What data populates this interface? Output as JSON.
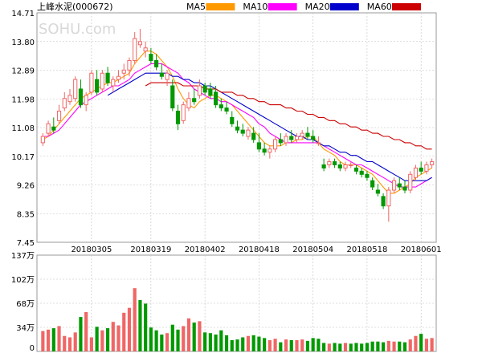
{
  "chart_data": {
    "type": "candlestick",
    "title": "上峰水泥(000672)",
    "price_axis": {
      "ticks": [
        "14.71",
        "13.80",
        "12.89",
        "11.98",
        "11.08",
        "10.17",
        "9.26",
        "8.35",
        "7.45"
      ],
      "ylim": [
        7.45,
        14.71
      ]
    },
    "volume_axis": {
      "ticks": [
        "137万",
        "102万",
        "68万",
        "34万",
        "0"
      ],
      "ylim": [
        0,
        137
      ]
    },
    "date_labels": [
      "20180305",
      "20180319",
      "20180402",
      "20180418",
      "20180504",
      "20180518",
      "20180601"
    ],
    "date_label_index": [
      9,
      20,
      30,
      40,
      50,
      60,
      70
    ],
    "legend": [
      {
        "name": "MA5",
        "color": "#ff9900"
      },
      {
        "name": "MA10",
        "color": "#ff00ff"
      },
      {
        "name": "MA20",
        "color": "#0000cc"
      },
      {
        "name": "MA60",
        "color": "#cc0000"
      }
    ],
    "colors": {
      "up": "#f06666",
      "down": "#009900",
      "grid": "#c0c0c0"
    },
    "watermark": "SOHU.com",
    "candles": [
      [
        10.6,
        10.9,
        10.5,
        10.8
      ],
      [
        10.9,
        11.3,
        10.8,
        11.2
      ],
      [
        11.1,
        11.4,
        10.9,
        11.0
      ],
      [
        11.3,
        11.8,
        11.2,
        11.6
      ],
      [
        11.7,
        12.2,
        11.6,
        12.0
      ],
      [
        11.9,
        12.3,
        11.8,
        12.1
      ],
      [
        12.0,
        12.7,
        11.9,
        12.6
      ],
      [
        12.3,
        12.6,
        11.7,
        11.8
      ],
      [
        11.8,
        12.2,
        11.6,
        12.1
      ],
      [
        12.2,
        12.9,
        12.1,
        12.8
      ],
      [
        12.6,
        12.9,
        12.1,
        12.2
      ],
      [
        12.3,
        12.9,
        12.2,
        12.8
      ],
      [
        12.8,
        13.0,
        12.4,
        12.5
      ],
      [
        12.4,
        12.7,
        12.2,
        12.6
      ],
      [
        12.6,
        12.9,
        12.5,
        12.7
      ],
      [
        12.8,
        13.1,
        12.6,
        12.9
      ],
      [
        12.9,
        13.3,
        12.7,
        13.2
      ],
      [
        13.2,
        14.1,
        13.1,
        13.9
      ],
      [
        13.7,
        14.2,
        13.6,
        13.8
      ],
      [
        13.5,
        13.8,
        13.3,
        13.6
      ],
      [
        13.4,
        13.6,
        13.1,
        13.2
      ],
      [
        13.2,
        13.4,
        12.9,
        13.0
      ],
      [
        12.8,
        13.1,
        12.6,
        12.7
      ],
      [
        12.6,
        12.9,
        12.4,
        12.8
      ],
      [
        12.4,
        12.6,
        11.6,
        11.7
      ],
      [
        11.6,
        11.8,
        11.0,
        11.2
      ],
      [
        11.3,
        11.9,
        11.2,
        11.8
      ],
      [
        11.7,
        12.2,
        11.6,
        12.0
      ],
      [
        12.0,
        12.3,
        11.8,
        11.9
      ],
      [
        12.1,
        12.6,
        12.0,
        12.4
      ],
      [
        12.4,
        12.5,
        12.1,
        12.2
      ],
      [
        12.3,
        12.5,
        12.0,
        12.1
      ],
      [
        12.2,
        12.4,
        11.7,
        11.8
      ],
      [
        11.8,
        12.0,
        11.6,
        11.7
      ],
      [
        11.7,
        11.9,
        11.5,
        11.6
      ],
      [
        11.4,
        11.6,
        11.1,
        11.2
      ],
      [
        11.1,
        11.3,
        10.9,
        11.0
      ],
      [
        11.0,
        11.2,
        10.8,
        10.9
      ],
      [
        10.8,
        11.1,
        10.7,
        11.0
      ],
      [
        10.9,
        11.1,
        10.6,
        10.7
      ],
      [
        10.6,
        10.9,
        10.3,
        10.4
      ],
      [
        10.4,
        10.6,
        10.2,
        10.3
      ],
      [
        10.3,
        10.5,
        10.1,
        10.4
      ],
      [
        10.4,
        10.8,
        10.3,
        10.7
      ],
      [
        10.7,
        10.9,
        10.5,
        10.6
      ],
      [
        10.6,
        10.9,
        10.5,
        10.8
      ],
      [
        10.8,
        11.0,
        10.6,
        10.7
      ],
      [
        10.7,
        10.9,
        10.6,
        10.8
      ],
      [
        10.8,
        11.0,
        10.7,
        10.9
      ],
      [
        10.9,
        11.1,
        10.7,
        10.8
      ],
      [
        10.8,
        11.0,
        10.6,
        10.7
      ],
      [
        10.6,
        10.8,
        10.5,
        10.6
      ],
      [
        9.9,
        10.1,
        9.7,
        9.8
      ],
      [
        9.9,
        10.1,
        9.8,
        10.0
      ],
      [
        10.0,
        10.1,
        9.8,
        9.9
      ],
      [
        9.9,
        10.0,
        9.7,
        9.8
      ],
      [
        9.8,
        10.0,
        9.7,
        9.9
      ],
      [
        9.9,
        10.0,
        9.8,
        9.9
      ],
      [
        9.8,
        9.9,
        9.6,
        9.7
      ],
      [
        9.7,
        9.8,
        9.5,
        9.6
      ],
      [
        9.6,
        9.7,
        9.4,
        9.5
      ],
      [
        9.4,
        9.5,
        9.1,
        9.2
      ],
      [
        9.1,
        9.3,
        8.9,
        9.0
      ],
      [
        8.9,
        9.0,
        8.5,
        8.6
      ],
      [
        8.6,
        9.2,
        8.1,
        9.1
      ],
      [
        9.1,
        9.5,
        9.0,
        9.4
      ],
      [
        9.3,
        9.5,
        9.1,
        9.2
      ],
      [
        9.2,
        9.4,
        9.0,
        9.1
      ],
      [
        9.1,
        9.7,
        9.0,
        9.6
      ],
      [
        9.5,
        9.9,
        9.4,
        9.8
      ],
      [
        9.8,
        10.0,
        9.6,
        9.7
      ],
      [
        9.7,
        10.0,
        9.6,
        9.9
      ],
      [
        9.9,
        10.1,
        9.8,
        10.0
      ]
    ],
    "volume": [
      29,
      31,
      33,
      36,
      22,
      20,
      27,
      49,
      56,
      20,
      35,
      30,
      33,
      42,
      37,
      55,
      62,
      90,
      73,
      68,
      34,
      30,
      24,
      26,
      38,
      31,
      36,
      47,
      41,
      43,
      27,
      26,
      24,
      30,
      23,
      16,
      17,
      20,
      22,
      23,
      21,
      19,
      16,
      18,
      13,
      17,
      16,
      16,
      17,
      15,
      19,
      18,
      12,
      11,
      12,
      11,
      12,
      11,
      12,
      11,
      12,
      14,
      14,
      13,
      15,
      14,
      14,
      13,
      17,
      22,
      25,
      18,
      19
    ],
    "volume_up": [
      true,
      true,
      false,
      true,
      true,
      true,
      true,
      false,
      true,
      true,
      false,
      true,
      false,
      true,
      true,
      true,
      true,
      true,
      false,
      false,
      false,
      false,
      false,
      true,
      false,
      false,
      true,
      true,
      false,
      true,
      false,
      false,
      false,
      false,
      false,
      false,
      false,
      false,
      true,
      false,
      false,
      false,
      true,
      true,
      false,
      true,
      false,
      true,
      true,
      false,
      false,
      false,
      false,
      true,
      false,
      false,
      true,
      false,
      false,
      false,
      false,
      false,
      false,
      false,
      true,
      true,
      false,
      false,
      true,
      true,
      false,
      true,
      true
    ],
    "ma": {
      "MA5": [
        10.7,
        10.8,
        11.0,
        11.2,
        11.4,
        11.6,
        11.8,
        12.0,
        12.1,
        12.2,
        12.3,
        12.4,
        12.5,
        12.5,
        12.6,
        12.7,
        12.8,
        13.1,
        13.3,
        13.5,
        13.5,
        13.4,
        13.2,
        13.0,
        12.7,
        12.3,
        12.0,
        11.8,
        11.7,
        11.9,
        12.0,
        12.1,
        12.1,
        12.0,
        11.9,
        11.8,
        11.6,
        11.4,
        11.2,
        11.0,
        10.8,
        10.6,
        10.5,
        10.5,
        10.5,
        10.6,
        10.6,
        10.7,
        10.7,
        10.8,
        10.8,
        10.6,
        10.4,
        10.3,
        10.2,
        10.0,
        9.9,
        9.9,
        9.9,
        9.8,
        9.7,
        9.6,
        9.4,
        9.2,
        9.0,
        9.0,
        9.1,
        9.2,
        9.3,
        9.5,
        9.6,
        9.7,
        9.8
      ],
      "MA10": [
        10.8,
        10.8,
        10.9,
        11.0,
        11.2,
        11.4,
        11.6,
        11.8,
        11.9,
        12.0,
        12.1,
        12.2,
        12.3,
        12.4,
        12.4,
        12.5,
        12.6,
        12.8,
        12.9,
        13.0,
        13.1,
        13.1,
        13.1,
        13.0,
        12.9,
        12.8,
        12.6,
        12.5,
        12.3,
        12.2,
        12.1,
        12.0,
        12.0,
        11.9,
        11.9,
        11.8,
        11.7,
        11.6,
        11.5,
        11.4,
        11.2,
        11.1,
        10.9,
        10.8,
        10.7,
        10.6,
        10.6,
        10.6,
        10.6,
        10.6,
        10.6,
        10.6,
        10.5,
        10.4,
        10.3,
        10.2,
        10.1,
        10.0,
        9.9,
        9.9,
        9.8,
        9.7,
        9.6,
        9.5,
        9.4,
        9.3,
        9.2,
        9.2,
        9.2,
        9.2,
        9.3,
        9.4,
        9.5
      ],
      "MA20": [
        null,
        null,
        null,
        null,
        null,
        null,
        null,
        null,
        null,
        null,
        null,
        null,
        12.1,
        12.2,
        12.3,
        12.4,
        12.5,
        12.6,
        12.7,
        12.8,
        12.8,
        12.8,
        12.8,
        12.8,
        12.7,
        12.7,
        12.6,
        12.6,
        12.5,
        12.5,
        12.4,
        12.4,
        12.3,
        12.2,
        12.1,
        12.0,
        11.9,
        11.8,
        11.7,
        11.6,
        11.5,
        11.4,
        11.3,
        11.2,
        11.1,
        11.0,
        10.9,
        10.8,
        10.8,
        10.7,
        10.7,
        10.6,
        10.5,
        10.5,
        10.4,
        10.3,
        10.3,
        10.2,
        10.2,
        10.1,
        10.0,
        10.0,
        9.9,
        9.8,
        9.7,
        9.6,
        9.5,
        9.4,
        9.4,
        9.4,
        9.4,
        9.4,
        9.5
      ],
      "MA60": [
        null,
        null,
        null,
        null,
        null,
        null,
        null,
        null,
        null,
        null,
        null,
        null,
        null,
        null,
        null,
        null,
        null,
        null,
        null,
        12.4,
        12.5,
        12.5,
        12.5,
        12.5,
        12.5,
        12.5,
        12.4,
        12.4,
        12.4,
        12.4,
        12.3,
        12.3,
        12.3,
        12.2,
        12.2,
        12.2,
        12.1,
        12.1,
        12.0,
        12.0,
        11.9,
        11.9,
        11.8,
        11.8,
        11.8,
        11.7,
        11.7,
        11.6,
        11.6,
        11.5,
        11.5,
        11.4,
        11.4,
        11.3,
        11.3,
        11.2,
        11.2,
        11.1,
        11.1,
        11.0,
        11.0,
        10.9,
        10.9,
        10.8,
        10.8,
        10.7,
        10.7,
        10.6,
        10.6,
        10.5,
        10.5,
        10.4,
        10.4
      ]
    }
  }
}
